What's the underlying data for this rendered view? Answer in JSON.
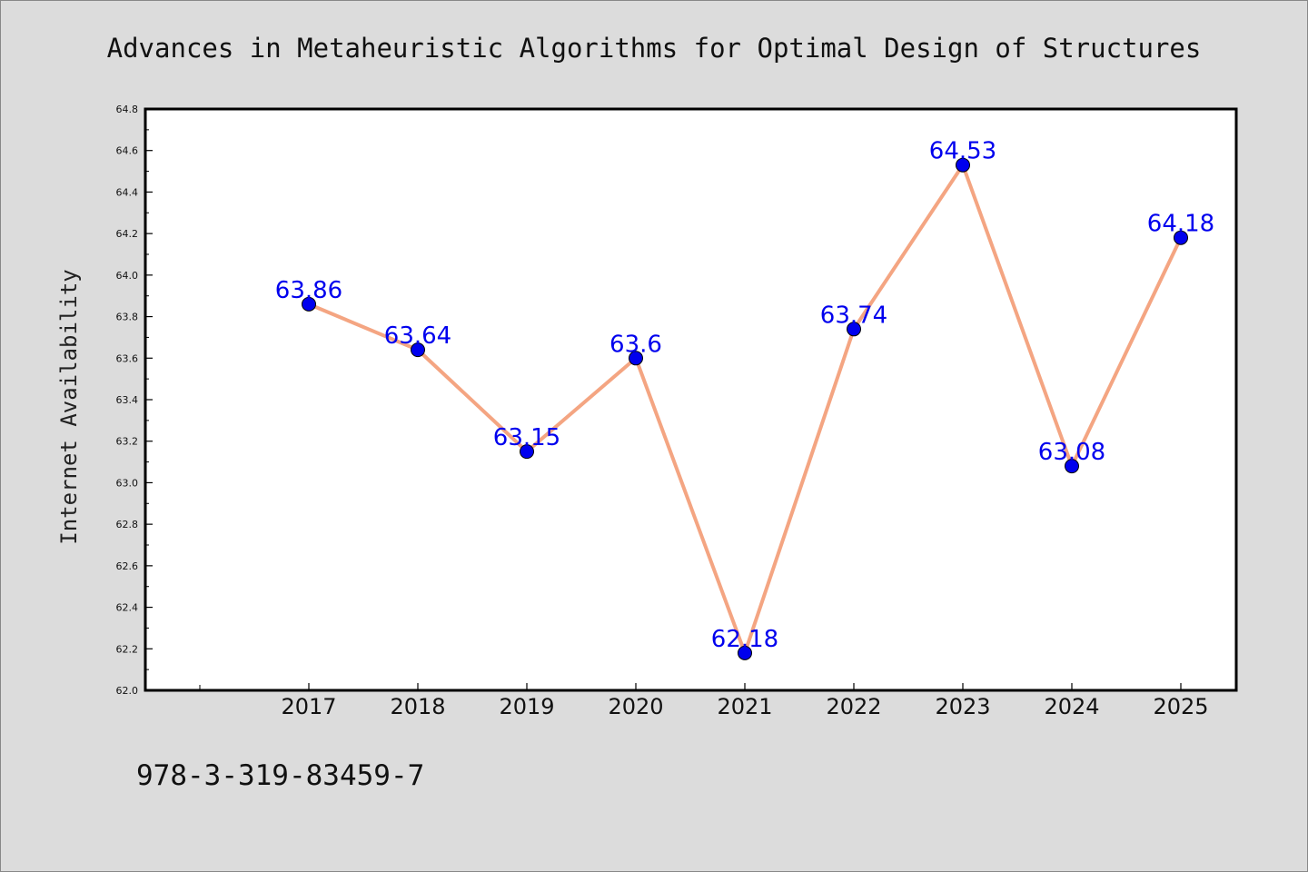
{
  "chart_data": {
    "type": "line",
    "title": "Advances in Metaheuristic Algorithms for Optimal Design of Structures",
    "xlabel": "",
    "ylabel": "Internet Availability",
    "categories": [
      "2017",
      "2018",
      "2019",
      "2020",
      "2021",
      "2022",
      "2023",
      "2024",
      "2025"
    ],
    "series": [
      {
        "values": [
          63.86,
          63.64,
          63.15,
          63.6,
          62.18,
          63.74,
          64.53,
          63.08,
          64.18
        ],
        "data_labels": [
          "63.86",
          "63.64",
          "63.15",
          "63.6",
          "62.18",
          "63.74",
          "64.53",
          "63.08",
          "64.18"
        ],
        "line_color": "#f4a582",
        "marker_color": "#0000ee"
      }
    ],
    "ylim": [
      62.0,
      64.8
    ],
    "yticks": [
      "62.0",
      "62.2",
      "62.4",
      "62.6",
      "62.8",
      "63.0",
      "63.2",
      "63.4",
      "63.6",
      "63.8",
      "64.0",
      "64.2",
      "64.4",
      "64.6",
      "64.8"
    ],
    "grid": false,
    "legend": "none",
    "label_color": "#0000ee"
  },
  "footer": {
    "isbn": "978-3-319-83459-7"
  }
}
